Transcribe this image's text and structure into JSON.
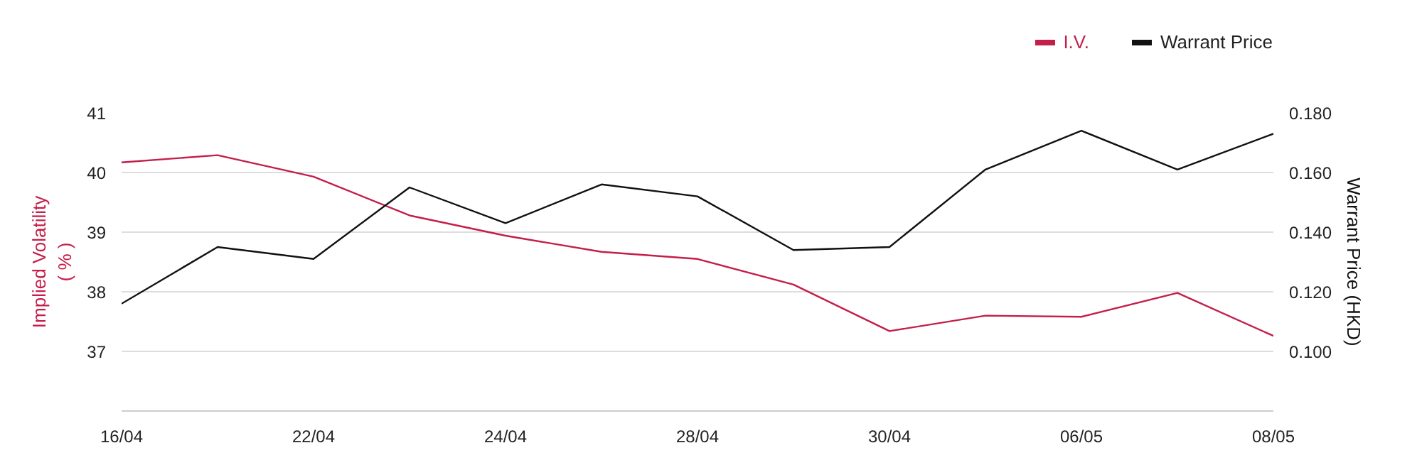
{
  "chart_data": {
    "type": "line",
    "categories": [
      "16/04",
      null,
      "22/04",
      null,
      "24/04",
      null,
      "28/04",
      null,
      "30/04",
      null,
      "06/05",
      null,
      "08/05"
    ],
    "series": [
      {
        "name": "I.V.",
        "color": "#c41e4a",
        "values": [
          40.17,
          40.29,
          39.93,
          39.28,
          38.94,
          38.67,
          38.55,
          38.12,
          37.34,
          37.6,
          37.58,
          37.98,
          37.26
        ]
      },
      {
        "name": "Warrant Price",
        "color": "#111111",
        "axis": "y2",
        "values": [
          0.116,
          0.135,
          0.131,
          0.155,
          0.143,
          0.156,
          0.152,
          0.134,
          0.135,
          0.161,
          0.174,
          0.161,
          0.173
        ]
      }
    ],
    "ylabel": "Implied Volatility\n( % )",
    "y2label": "Warrant Price (HKD)",
    "ylim": [
      36,
      41
    ],
    "yticks": [
      37,
      38,
      39,
      40,
      41
    ],
    "y2lim": [
      0.08,
      0.18
    ],
    "y2ticks": [
      {
        "value": 0.1,
        "label": "0.100"
      },
      {
        "value": 0.12,
        "label": "0.120"
      },
      {
        "value": 0.14,
        "label": "0.140"
      },
      {
        "value": 0.16,
        "label": "0.160"
      },
      {
        "value": 0.18,
        "label": "0.180"
      }
    ],
    "grid": "y",
    "legend": "top right",
    "marker": "none",
    "line_style": "solid"
  }
}
